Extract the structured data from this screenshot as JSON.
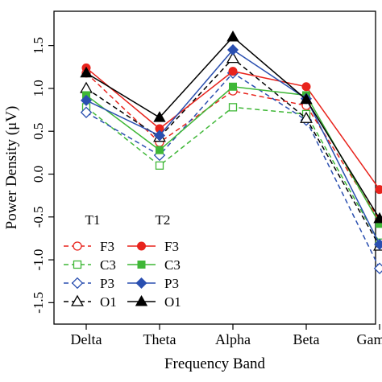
{
  "chart_data": {
    "type": "line",
    "xlabel": "Frequency Band",
    "ylabel": "Power Density (μV)",
    "categories": [
      "Delta",
      "Theta",
      "Alpha",
      "Beta",
      "Gamma"
    ],
    "ylim": [
      -1.75,
      1.9
    ],
    "yticks": [
      -1.5,
      -1.0,
      -0.5,
      0.0,
      0.5,
      1.0,
      1.5
    ],
    "ytick_labels": [
      "-1.5",
      "-1.0",
      "-0.5",
      "0.0",
      "0.5",
      "1.0",
      "1.5"
    ],
    "grid": false,
    "legend": {
      "placement": "bottom-left",
      "group_titles": [
        "T1",
        "T2"
      ]
    },
    "series": [
      {
        "name": "F3",
        "group": "T1",
        "color": "#e8231c",
        "marker": "circle-open",
        "dash": true,
        "values": [
          1.18,
          0.37,
          0.97,
          0.8,
          -0.54
        ]
      },
      {
        "name": "C3",
        "group": "T1",
        "color": "#3fb737",
        "marker": "square-open",
        "dash": true,
        "values": [
          0.78,
          0.1,
          0.78,
          0.7,
          -0.8
        ]
      },
      {
        "name": "P3",
        "group": "T1",
        "color": "#2a4fb0",
        "marker": "diamond-open",
        "dash": true,
        "values": [
          0.72,
          0.22,
          1.18,
          0.63,
          -1.1
        ]
      },
      {
        "name": "O1",
        "group": "T1",
        "color": "#000000",
        "marker": "triangle-open",
        "dash": true,
        "values": [
          1.0,
          0.43,
          1.35,
          0.65,
          -0.84
        ]
      },
      {
        "name": "F3",
        "group": "T2",
        "color": "#e8231c",
        "marker": "circle",
        "dash": false,
        "values": [
          1.24,
          0.53,
          1.2,
          1.02,
          -0.18
        ]
      },
      {
        "name": "C3",
        "group": "T2",
        "color": "#3fb737",
        "marker": "square",
        "dash": false,
        "values": [
          0.92,
          0.28,
          1.02,
          0.92,
          -0.58
        ]
      },
      {
        "name": "P3",
        "group": "T2",
        "color": "#2a4fb0",
        "marker": "diamond",
        "dash": false,
        "values": [
          0.86,
          0.45,
          1.45,
          0.88,
          -0.82
        ]
      },
      {
        "name": "O1",
        "group": "T2",
        "color": "#000000",
        "marker": "triangle",
        "dash": false,
        "values": [
          1.18,
          0.66,
          1.6,
          0.87,
          -0.52
        ]
      }
    ]
  }
}
